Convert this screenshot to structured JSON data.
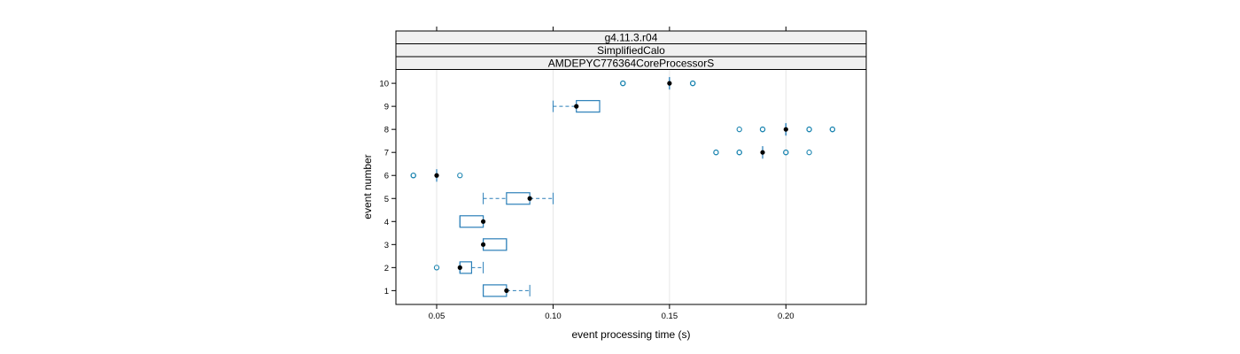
{
  "chart_data": {
    "type": "boxplot",
    "orientation": "horizontal",
    "strips": [
      "g4.11.3.r04",
      "SimplifiedCalo",
      "AMDEPYC776364CoreProcessorS"
    ],
    "xlabel": "event processing time (s)",
    "ylabel": "event number",
    "xlim": [
      0.0325,
      0.2345
    ],
    "ylim": [
      0.4,
      10.6
    ],
    "x_ticks": [
      0.05,
      0.1,
      0.15,
      0.2
    ],
    "x_tick_labels": [
      "0.05",
      "0.10",
      "0.15",
      "0.20"
    ],
    "y_ticks": [
      1,
      2,
      3,
      4,
      5,
      6,
      7,
      8,
      9,
      10
    ],
    "y_tick_labels": [
      "1",
      "2",
      "3",
      "4",
      "5",
      "6",
      "7",
      "8",
      "9",
      "10"
    ],
    "grid": "vertical",
    "boxes": [
      {
        "event": 1,
        "whisker_low": 0.07,
        "q1": 0.07,
        "median": 0.08,
        "q3": 0.08,
        "whisker_high": 0.09,
        "outliers": []
      },
      {
        "event": 2,
        "whisker_low": 0.06,
        "q1": 0.06,
        "median": 0.06,
        "q3": 0.065,
        "whisker_high": 0.07,
        "outliers": [
          0.05
        ]
      },
      {
        "event": 3,
        "whisker_low": 0.07,
        "q1": 0.07,
        "median": 0.07,
        "q3": 0.08,
        "whisker_high": 0.08,
        "outliers": []
      },
      {
        "event": 4,
        "whisker_low": 0.06,
        "q1": 0.06,
        "median": 0.07,
        "q3": 0.07,
        "whisker_high": 0.07,
        "outliers": []
      },
      {
        "event": 5,
        "whisker_low": 0.07,
        "q1": 0.08,
        "median": 0.09,
        "q3": 0.09,
        "whisker_high": 0.1,
        "outliers": []
      },
      {
        "event": 6,
        "whisker_low": 0.05,
        "q1": 0.05,
        "median": 0.05,
        "q3": 0.05,
        "whisker_high": 0.05,
        "outliers": [
          0.04,
          0.04,
          0.06
        ]
      },
      {
        "event": 7,
        "whisker_low": 0.19,
        "q1": 0.19,
        "median": 0.19,
        "q3": 0.19,
        "whisker_high": 0.19,
        "outliers": [
          0.17,
          0.17,
          0.18,
          0.18,
          0.2,
          0.2,
          0.21
        ]
      },
      {
        "event": 8,
        "whisker_low": 0.2,
        "q1": 0.2,
        "median": 0.2,
        "q3": 0.2,
        "whisker_high": 0.2,
        "outliers": [
          0.18,
          0.19,
          0.19,
          0.21,
          0.21,
          0.22,
          0.22
        ]
      },
      {
        "event": 9,
        "whisker_low": 0.1,
        "q1": 0.11,
        "median": 0.11,
        "q3": 0.12,
        "whisker_high": 0.12,
        "outliers": []
      },
      {
        "event": 10,
        "whisker_low": 0.15,
        "q1": 0.15,
        "median": 0.15,
        "q3": 0.15,
        "whisker_high": 0.15,
        "outliers": [
          0.13,
          0.13,
          0.16,
          0.16
        ]
      }
    ]
  },
  "colors": {
    "box": "#2b7fb8",
    "outlier": "#1a84b0",
    "median_dot": "#000000",
    "grid": "#e6e6e6",
    "strip_bg": "#f0f0f0",
    "frame": "#000000"
  }
}
